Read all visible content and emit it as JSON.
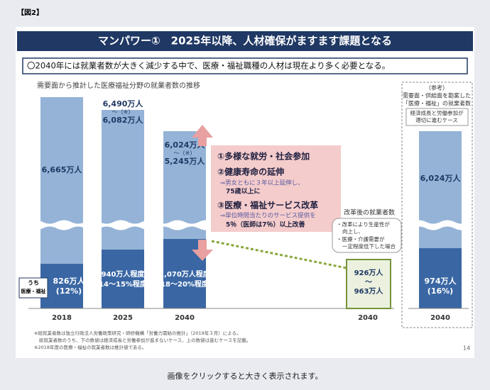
{
  "figure_label": "【図2】",
  "header": {
    "title": "マンパワー①　2025年以降、人材確保がますます課題となる",
    "subtitle": "〇2040年には就業者数が大きく減少する中で、医療・福祉職種の人材は現在より多く必要となる。"
  },
  "chart": {
    "heading": "需要面から推計した医療福祉分野の就業者数の推移",
    "bars": [
      {
        "year": "2018",
        "total": "6,665万人",
        "sub": "826万人",
        "share": "(12%)"
      },
      {
        "year": "2025",
        "total_top": "6,490万人",
        "range_mark": "～（※）",
        "total": "6,082万人",
        "sub": "940万人程度",
        "share": "(14～15%程度)"
      },
      {
        "year": "2040",
        "total_top": "6,024万人",
        "range_mark": "～（※）",
        "total": "5,245万人",
        "sub": "1,070万人程度",
        "share": "(18～20%程度)"
      }
    ],
    "sub_label": [
      "うち",
      "医療・福祉"
    ],
    "reforms": [
      {
        "title": "①多様な就労・社会参加"
      },
      {
        "title": "②健康寿命の延伸",
        "notes": [
          "⇒男女ともに３年以上延伸し、",
          "75歳以上に"
        ]
      },
      {
        "title": "③医療・福祉サービス改革",
        "notes": [
          "⇒単位時間当たりのサービス提供を",
          "5％（医師は7％）以上改善"
        ]
      }
    ],
    "reform_result": {
      "label": "改革後の就業者数",
      "notes": [
        "・改革により生産性が",
        "向上し、",
        "・医療・介護需要が",
        "一定程度低下した場合"
      ],
      "value_top": "926万人",
      "tilde": "～",
      "value_bottom": "963万人",
      "year": "2040"
    },
    "reference": {
      "title": "（参考）",
      "lines": [
        "需要面・供給面を勘案した",
        "「医療・福祉」の就業者数"
      ],
      "case": [
        "経済成長と労働参加が",
        "適切に進むケース"
      ],
      "total": "6,024万人",
      "sub": "974万人",
      "share": "(16%)",
      "year": "2040"
    }
  },
  "footnotes": [
    "※総就業者数は独立行政法人労働政策研究・研修機構「労働力需給の推計」（2019年３月）による。",
    "総就業者数のうち、下の数値は経済成長と労働参加が進まないケース、上の数値は進むケースを記載。",
    "※2018年度の医療・福祉の就業者数は推計値である。"
  ],
  "page_number": "14",
  "caption": "画像をクリックすると大きく表示されます。"
}
